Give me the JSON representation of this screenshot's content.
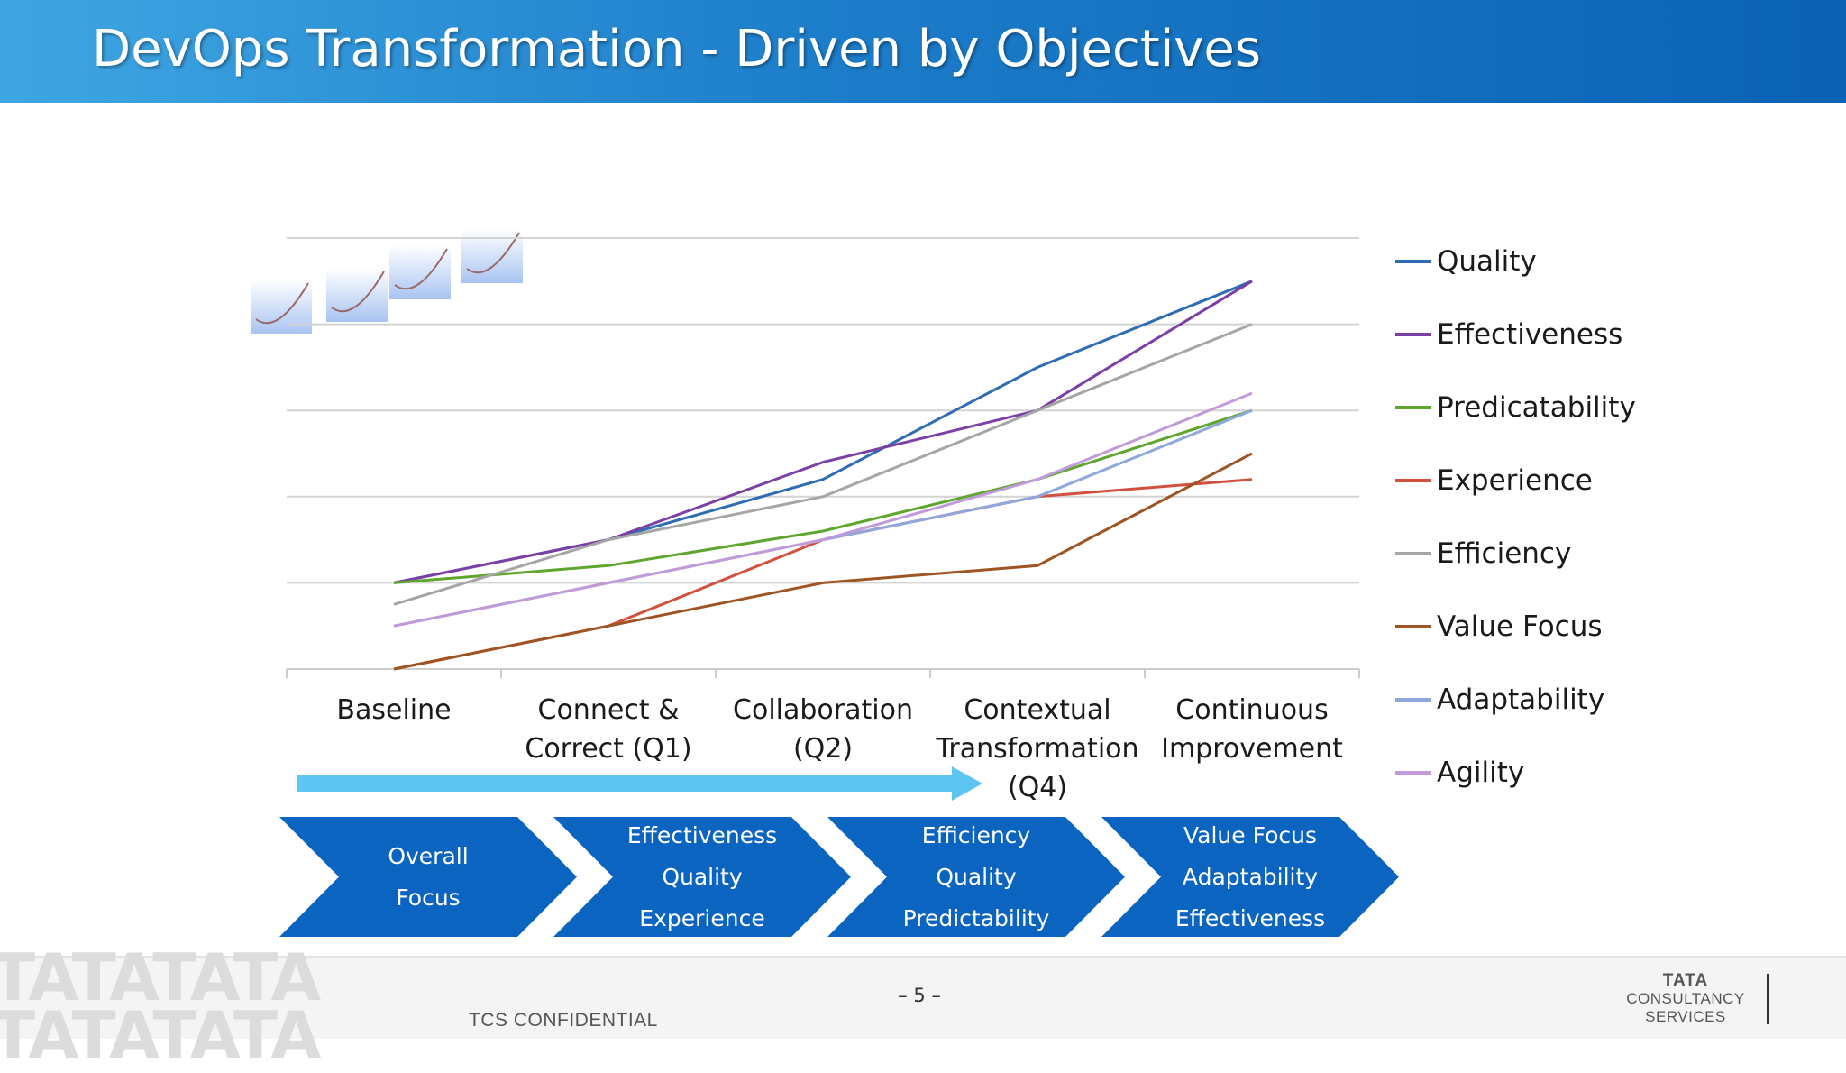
{
  "slide": {
    "title": "DevOps Transformation - Driven by Objectives"
  },
  "chart_data": {
    "type": "line",
    "title": "",
    "xlabel": "",
    "ylabel": "",
    "categories": [
      "Baseline",
      "Connect & Correct (Q1)",
      "Collaboration (Q2)",
      "Contextual Transformation (Q4)",
      "Continuous Improvement"
    ],
    "category_lines": [
      [
        "Baseline"
      ],
      [
        "Connect &",
        "Correct (Q1)"
      ],
      [
        "Collaboration",
        "(Q2)"
      ],
      [
        "Contextual",
        "Transformation",
        "(Q4)"
      ],
      [
        "Continuous",
        "Improvement"
      ]
    ],
    "ylim": [
      0,
      5
    ],
    "gridlines": [
      1,
      2,
      3,
      4,
      5
    ],
    "legend_position": "right",
    "series": [
      {
        "name": "Quality",
        "color": "#2e6db4",
        "values": [
          1.0,
          1.5,
          2.2,
          3.5,
          4.5
        ]
      },
      {
        "name": "Effectiveness",
        "color": "#7b3fa6",
        "values": [
          1.0,
          1.5,
          2.4,
          3.0,
          4.5
        ]
      },
      {
        "name": "Predicatability",
        "color": "#5ea62e",
        "values": [
          1.0,
          1.2,
          1.6,
          2.2,
          3.0
        ]
      },
      {
        "name": "Experience",
        "color": "#d2503e",
        "values": [
          0.0,
          0.5,
          1.5,
          2.0,
          2.2
        ]
      },
      {
        "name": "Efficiency",
        "color": "#a6a6a6",
        "values": [
          0.75,
          1.5,
          2.0,
          3.0,
          4.0
        ]
      },
      {
        "name": "Value Focus",
        "color": "#9e5423",
        "values": [
          0.0,
          0.5,
          1.0,
          1.2,
          2.5
        ]
      },
      {
        "name": "Adaptability",
        "color": "#8ea8dc",
        "values": [
          0.5,
          1.0,
          1.5,
          2.0,
          3.0
        ]
      },
      {
        "name": "Agility",
        "color": "#c19bd9",
        "values": [
          0.5,
          1.0,
          1.5,
          2.2,
          3.2
        ]
      }
    ]
  },
  "focus_chevrons": [
    {
      "lines": [
        "Overall",
        "Focus"
      ]
    },
    {
      "lines": [
        "Effectiveness",
        "Quality",
        "Experience"
      ]
    },
    {
      "lines": [
        "Efficiency",
        "Quality",
        "Predictability"
      ]
    },
    {
      "lines": [
        "Value Focus",
        "Adaptability",
        "Effectiveness"
      ]
    }
  ],
  "colors": {
    "chevron": "#0b64c0",
    "arrow": "#5ec4f2"
  },
  "footer": {
    "watermark": [
      "TATATATA",
      "TATATATA"
    ],
    "confidential": "TCS CONFIDENTIAL",
    "page_number": "– 5 –",
    "logo_lines": [
      "TATA",
      "CONSULTANCY",
      "SERVICES"
    ]
  }
}
